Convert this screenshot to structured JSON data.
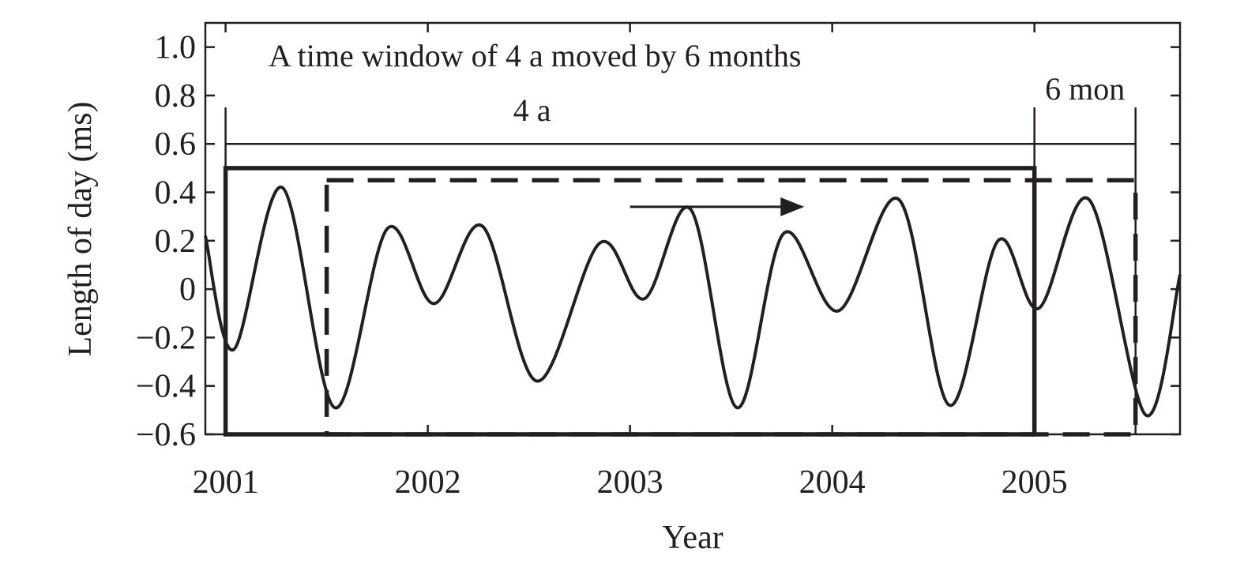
{
  "chart_data": {
    "type": "line",
    "xlabel": "Year",
    "ylabel": "Length of day (ms)",
    "xlim": [
      2000.9,
      2005.72
    ],
    "ylim": [
      -0.6,
      1.1
    ],
    "x_ticks": [
      2001,
      2002,
      2003,
      2004,
      2005
    ],
    "x_tick_labels": [
      "2001",
      "2002",
      "2003",
      "2004",
      "2005"
    ],
    "y_ticks": [
      -0.6,
      -0.4,
      -0.2,
      0,
      0.2,
      0.4,
      0.6,
      0.8,
      1.0
    ],
    "y_tick_labels": [
      "−0.6",
      "−0.4",
      "−0.2",
      "0",
      "0.2",
      "0.4",
      "0.6",
      "0.8",
      "1.0"
    ],
    "grid": false,
    "legend": "none",
    "series": [
      {
        "x": [
          2000.9,
          2001.04,
          2001.28,
          2001.54,
          2001.8,
          2002.03,
          2002.27,
          2002.54,
          2002.85,
          2003.07,
          2003.3,
          2003.53,
          2003.76,
          2004.03,
          2004.33,
          2004.58,
          2004.82,
          2005.02,
          2005.27,
          2005.55,
          2005.72
        ],
        "y": [
          0.22,
          -0.25,
          0.42,
          -0.49,
          0.25,
          -0.06,
          0.26,
          -0.38,
          0.19,
          -0.04,
          0.33,
          -0.49,
          0.23,
          -0.09,
          0.37,
          -0.48,
          0.2,
          -0.08,
          0.37,
          -0.52,
          0.06
        ]
      }
    ],
    "windows": [
      {
        "style": "solid",
        "x_start": 2001.0,
        "x_end": 2005.0,
        "y_top": 0.5,
        "y_bottom": -0.6
      },
      {
        "style": "dashed",
        "x_start": 2001.5,
        "x_end": 2005.5,
        "y_top": 0.45,
        "y_bottom": -0.6
      }
    ],
    "span_markers": {
      "bar_y": 0.6,
      "four_year": {
        "label": "4 a",
        "x_start": 2001.0,
        "x_end": 2005.0
      },
      "six_month": {
        "label": "6 mon",
        "x_start": 2005.0,
        "x_end": 2005.5
      }
    },
    "arrow": {
      "x_start": 2003.0,
      "x_end": 2003.85,
      "y": 0.34
    },
    "annotation": "A time window of 4 a moved by 6 months"
  }
}
